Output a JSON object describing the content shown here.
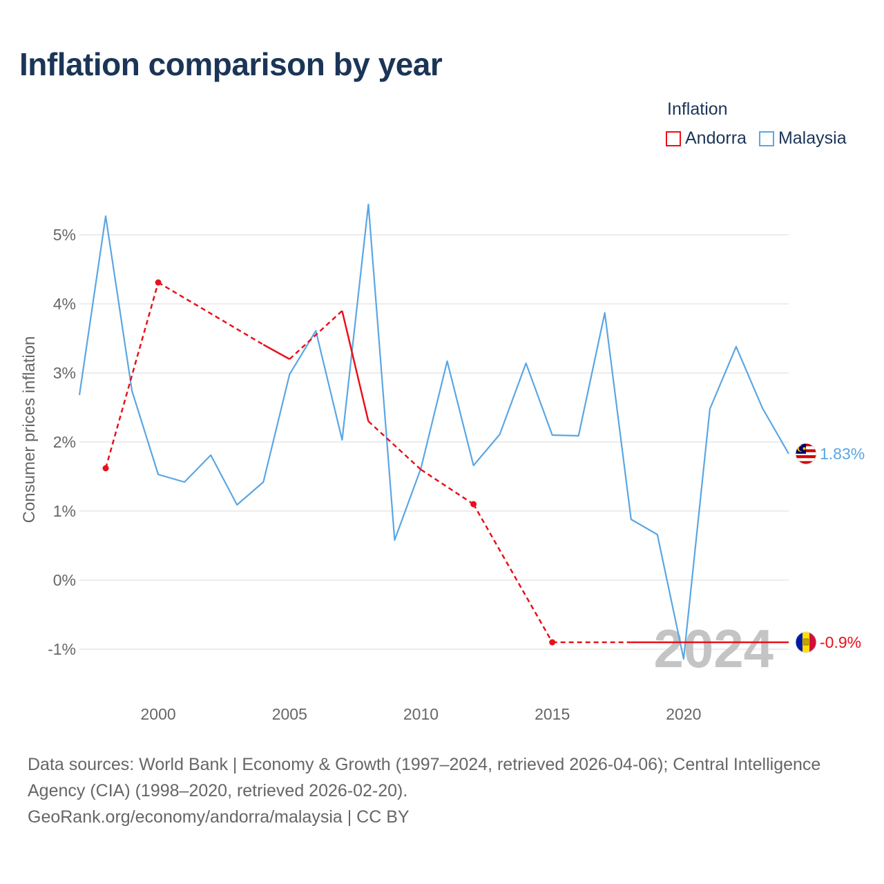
{
  "title": "Inflation comparison by year",
  "legend": {
    "title": "Inflation",
    "items": [
      {
        "label": "Andorra",
        "color": "#e8101a"
      },
      {
        "label": "Malaysia",
        "color": "#5aa6e3"
      }
    ]
  },
  "watermark": "2024",
  "footer": {
    "line1": "Data sources: World Bank | Economy & Growth (1997–2024, retrieved 2026-04-06); Central Intelligence Agency (CIA) (1998–2020, retrieved 2026-02-20).",
    "line2": "GeoRank.org/economy/andorra/malaysia | CC BY"
  },
  "chart_data": {
    "type": "line",
    "title": "Inflation comparison by year",
    "xlabel": "",
    "ylabel": "Consumer prices inflation",
    "xlim": [
      1997,
      2024
    ],
    "ylim": [
      -1.7,
      5.7
    ],
    "x_ticks": [
      2000,
      2005,
      2010,
      2015,
      2020
    ],
    "y_ticks": [
      {
        "value": 5,
        "label": "5%"
      },
      {
        "value": 4,
        "label": "4%"
      },
      {
        "value": 3,
        "label": "3%"
      },
      {
        "value": 2,
        "label": "2%"
      },
      {
        "value": 1,
        "label": "1%"
      },
      {
        "value": 0,
        "label": "0%"
      },
      {
        "value": -1,
        "label": "-1%"
      }
    ],
    "grid": true,
    "series": [
      {
        "name": "Malaysia",
        "color": "#5aa6e3",
        "end_label": "1.83%",
        "points": [
          [
            1997,
            2.68
          ],
          [
            1998,
            5.27
          ],
          [
            1999,
            2.74
          ],
          [
            2000,
            1.53
          ],
          [
            2001,
            1.42
          ],
          [
            2002,
            1.81
          ],
          [
            2003,
            1.09
          ],
          [
            2004,
            1.42
          ],
          [
            2005,
            2.98
          ],
          [
            2006,
            3.61
          ],
          [
            2007,
            2.03
          ],
          [
            2008,
            5.44
          ],
          [
            2009,
            0.58
          ],
          [
            2010,
            1.62
          ],
          [
            2011,
            3.17
          ],
          [
            2012,
            1.66
          ],
          [
            2013,
            2.11
          ],
          [
            2014,
            3.14
          ],
          [
            2015,
            2.1
          ],
          [
            2016,
            2.09
          ],
          [
            2017,
            3.87
          ],
          [
            2018,
            0.88
          ],
          [
            2019,
            0.66
          ],
          [
            2020,
            -1.14
          ],
          [
            2021,
            2.48
          ],
          [
            2022,
            3.38
          ],
          [
            2023,
            2.49
          ],
          [
            2024,
            1.83
          ]
        ]
      },
      {
        "name": "Andorra",
        "color": "#e8101a",
        "end_label": "-0.9%",
        "points": [
          [
            1998,
            1.62
          ],
          [
            2000,
            4.31
          ],
          [
            2004,
            3.41
          ],
          [
            2005,
            3.2
          ],
          [
            2007,
            3.9
          ],
          [
            2008,
            2.3
          ],
          [
            2010,
            1.6
          ],
          [
            2012,
            1.1
          ],
          [
            2015,
            -0.9
          ],
          [
            2018,
            -0.9
          ],
          [
            2020,
            -0.9
          ],
          [
            2024,
            -0.9
          ]
        ],
        "segments": [
          {
            "from": 1998,
            "to": 2000,
            "style": "dashed"
          },
          {
            "from": 2000,
            "to": 2004,
            "style": "dashed"
          },
          {
            "from": 2004,
            "to": 2005,
            "style": "solid"
          },
          {
            "from": 2005,
            "to": 2007,
            "style": "dashed"
          },
          {
            "from": 2007,
            "to": 2008,
            "style": "solid"
          },
          {
            "from": 2008,
            "to": 2010,
            "style": "dashed"
          },
          {
            "from": 2010,
            "to": 2012,
            "style": "dashed"
          },
          {
            "from": 2012,
            "to": 2015,
            "style": "dashed"
          },
          {
            "from": 2015,
            "to": 2018,
            "style": "dashed"
          },
          {
            "from": 2018,
            "to": 2020,
            "style": "solid"
          },
          {
            "from": 2020,
            "to": 2024,
            "style": "solid"
          }
        ],
        "markers": [
          1998,
          2000,
          2012,
          2015
        ]
      }
    ]
  }
}
